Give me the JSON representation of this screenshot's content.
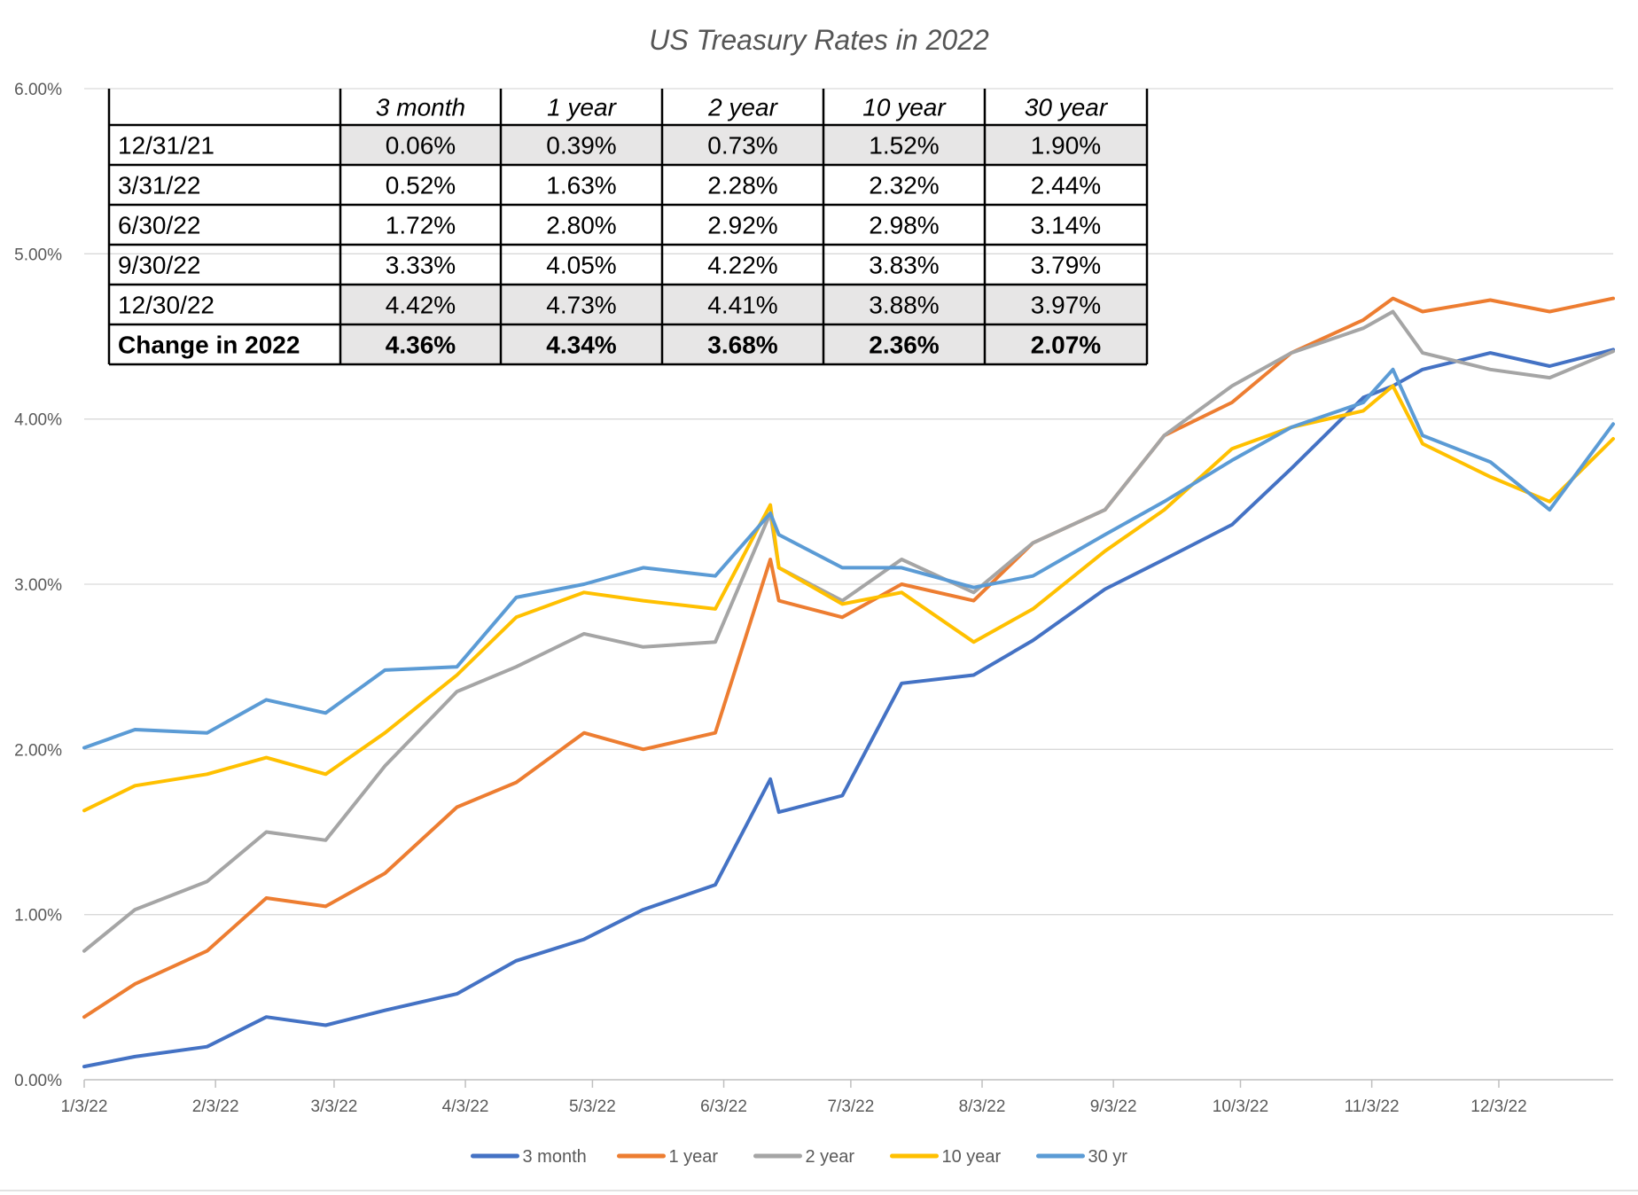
{
  "chart_data": {
    "type": "line",
    "title": "US Treasury Rates in 2022",
    "xlabel": "",
    "ylabel": "",
    "ylim": [
      0,
      0.06
    ],
    "y_ticks": [
      "0.00%",
      "1.00%",
      "2.00%",
      "3.00%",
      "4.00%",
      "5.00%",
      "6.00%"
    ],
    "x_ticks": [
      "1/3/22",
      "2/3/22",
      "3/3/22",
      "4/3/22",
      "5/3/22",
      "6/3/22",
      "7/3/22",
      "8/3/22",
      "9/3/22",
      "10/3/22",
      "11/3/22",
      "12/3/22"
    ],
    "grid": "horizontal",
    "legend_position": "bottom",
    "x": [
      "2022-01-03",
      "2022-01-15",
      "2022-02-01",
      "2022-02-15",
      "2022-03-01",
      "2022-03-15",
      "2022-04-01",
      "2022-04-15",
      "2022-05-01",
      "2022-05-15",
      "2022-06-01",
      "2022-06-14",
      "2022-06-16",
      "2022-07-01",
      "2022-07-15",
      "2022-08-01",
      "2022-08-15",
      "2022-09-01",
      "2022-09-15",
      "2022-10-01",
      "2022-10-15",
      "2022-11-01",
      "2022-11-08",
      "2022-11-15",
      "2022-12-01",
      "2022-12-15",
      "2022-12-30"
    ],
    "series": [
      {
        "name": "3 month",
        "color": "#4472C4",
        "values": [
          0.08,
          0.14,
          0.2,
          0.38,
          0.33,
          0.42,
          0.52,
          0.72,
          0.85,
          1.03,
          1.18,
          1.82,
          1.62,
          1.72,
          2.4,
          2.45,
          2.66,
          2.97,
          3.15,
          3.36,
          3.7,
          4.13,
          4.2,
          4.3,
          4.4,
          4.32,
          4.42
        ]
      },
      {
        "name": "1 year",
        "color": "#ED7D31",
        "values": [
          0.38,
          0.58,
          0.78,
          1.1,
          1.05,
          1.25,
          1.65,
          1.8,
          2.1,
          2.0,
          2.1,
          3.15,
          2.9,
          2.8,
          3.0,
          2.9,
          3.25,
          3.45,
          3.9,
          4.1,
          4.4,
          4.6,
          4.73,
          4.65,
          4.72,
          4.65,
          4.73
        ]
      },
      {
        "name": "2 year",
        "color": "#A5A5A5",
        "values": [
          0.78,
          1.03,
          1.2,
          1.5,
          1.45,
          1.9,
          2.35,
          2.5,
          2.7,
          2.62,
          2.65,
          3.43,
          3.1,
          2.9,
          3.15,
          2.95,
          3.25,
          3.45,
          3.9,
          4.2,
          4.4,
          4.55,
          4.65,
          4.4,
          4.3,
          4.25,
          4.41
        ]
      },
      {
        "name": "10 year",
        "color": "#FFC000",
        "values": [
          1.63,
          1.78,
          1.85,
          1.95,
          1.85,
          2.1,
          2.45,
          2.8,
          2.95,
          2.9,
          2.85,
          3.48,
          3.1,
          2.88,
          2.95,
          2.65,
          2.85,
          3.2,
          3.45,
          3.82,
          3.95,
          4.05,
          4.2,
          3.85,
          3.65,
          3.5,
          3.88
        ]
      },
      {
        "name": "30 yr",
        "color": "#5B9BD5",
        "values": [
          2.01,
          2.12,
          2.1,
          2.3,
          2.22,
          2.48,
          2.5,
          2.92,
          3.0,
          3.1,
          3.05,
          3.43,
          3.3,
          3.1,
          3.1,
          2.98,
          3.05,
          3.3,
          3.5,
          3.75,
          3.95,
          4.1,
          4.3,
          3.9,
          3.74,
          3.45,
          3.97
        ]
      }
    ],
    "table": {
      "headers": [
        "",
        "3 month",
        "1 year",
        "2 year",
        "10 year",
        "30 year"
      ],
      "rows": [
        {
          "label": "12/31/21",
          "values": [
            "0.06%",
            "0.39%",
            "0.73%",
            "1.52%",
            "1.90%"
          ],
          "shaded": true,
          "bold": false
        },
        {
          "label": "3/31/22",
          "values": [
            "0.52%",
            "1.63%",
            "2.28%",
            "2.32%",
            "2.44%"
          ],
          "shaded": false,
          "bold": false
        },
        {
          "label": "6/30/22",
          "values": [
            "1.72%",
            "2.80%",
            "2.92%",
            "2.98%",
            "3.14%"
          ],
          "shaded": false,
          "bold": false
        },
        {
          "label": "9/30/22",
          "values": [
            "3.33%",
            "4.05%",
            "4.22%",
            "3.83%",
            "3.79%"
          ],
          "shaded": false,
          "bold": false
        },
        {
          "label": "12/30/22",
          "values": [
            "4.42%",
            "4.73%",
            "4.41%",
            "3.88%",
            "3.97%"
          ],
          "shaded": true,
          "bold": false
        },
        {
          "label": "Change in 2022",
          "values": [
            "4.36%",
            "4.34%",
            "3.68%",
            "2.36%",
            "2.07%"
          ],
          "shaded": true,
          "bold": true
        }
      ]
    }
  }
}
